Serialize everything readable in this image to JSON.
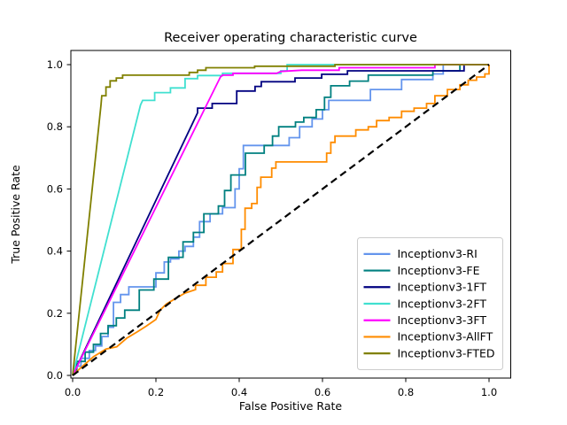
{
  "chart_data": {
    "type": "line",
    "title": "Receiver operating characteristic curve",
    "xlabel": "False Positive Rate",
    "ylabel": "True Positive Rate",
    "xlim": [
      0.0,
      1.0
    ],
    "ylim": [
      0.0,
      1.0
    ],
    "xticks": [
      0.0,
      0.2,
      0.4,
      0.6,
      0.8,
      1.0
    ],
    "yticks": [
      0.0,
      0.2,
      0.4,
      0.6,
      0.8,
      1.0
    ],
    "grid": false,
    "legend_position": "lower right",
    "series": [
      {
        "name": "Inceptionv3-RI",
        "color": "#6495ED",
        "style": "solid",
        "in_legend": true,
        "points": [
          [
            0,
            0
          ],
          [
            0.005,
            0.03
          ],
          [
            0.02,
            0.03
          ],
          [
            0.02,
            0.055
          ],
          [
            0.04,
            0.055
          ],
          [
            0.04,
            0.08
          ],
          [
            0.055,
            0.08
          ],
          [
            0.055,
            0.095
          ],
          [
            0.07,
            0.095
          ],
          [
            0.07,
            0.125
          ],
          [
            0.085,
            0.125
          ],
          [
            0.085,
            0.155
          ],
          [
            0.098,
            0.155
          ],
          [
            0.098,
            0.235
          ],
          [
            0.115,
            0.235
          ],
          [
            0.115,
            0.26
          ],
          [
            0.135,
            0.26
          ],
          [
            0.135,
            0.285
          ],
          [
            0.2,
            0.285
          ],
          [
            0.2,
            0.33
          ],
          [
            0.22,
            0.33
          ],
          [
            0.22,
            0.365
          ],
          [
            0.235,
            0.365
          ],
          [
            0.235,
            0.375
          ],
          [
            0.255,
            0.375
          ],
          [
            0.255,
            0.4
          ],
          [
            0.27,
            0.4
          ],
          [
            0.27,
            0.415
          ],
          [
            0.29,
            0.415
          ],
          [
            0.29,
            0.445
          ],
          [
            0.305,
            0.445
          ],
          [
            0.305,
            0.495
          ],
          [
            0.33,
            0.495
          ],
          [
            0.33,
            0.52
          ],
          [
            0.36,
            0.52
          ],
          [
            0.36,
            0.54
          ],
          [
            0.39,
            0.54
          ],
          [
            0.39,
            0.6
          ],
          [
            0.4,
            0.6
          ],
          [
            0.4,
            0.665
          ],
          [
            0.41,
            0.665
          ],
          [
            0.41,
            0.74
          ],
          [
            0.52,
            0.74
          ],
          [
            0.52,
            0.765
          ],
          [
            0.545,
            0.765
          ],
          [
            0.545,
            0.8
          ],
          [
            0.575,
            0.8
          ],
          [
            0.575,
            0.825
          ],
          [
            0.6,
            0.825
          ],
          [
            0.6,
            0.855
          ],
          [
            0.615,
            0.855
          ],
          [
            0.615,
            0.885
          ],
          [
            0.715,
            0.885
          ],
          [
            0.715,
            0.92
          ],
          [
            0.79,
            0.92
          ],
          [
            0.79,
            0.952
          ],
          [
            0.865,
            0.952
          ],
          [
            0.865,
            0.97
          ],
          [
            0.89,
            0.97
          ],
          [
            0.89,
            1
          ],
          [
            1,
            1
          ]
        ]
      },
      {
        "name": "Inceptionv3-FE",
        "color": "#008080",
        "style": "solid",
        "in_legend": true,
        "points": [
          [
            0,
            0
          ],
          [
            0.01,
            0.02
          ],
          [
            0.01,
            0.045
          ],
          [
            0.03,
            0.045
          ],
          [
            0.03,
            0.075
          ],
          [
            0.05,
            0.075
          ],
          [
            0.05,
            0.1
          ],
          [
            0.067,
            0.1
          ],
          [
            0.067,
            0.135
          ],
          [
            0.085,
            0.135
          ],
          [
            0.085,
            0.16
          ],
          [
            0.105,
            0.16
          ],
          [
            0.105,
            0.185
          ],
          [
            0.125,
            0.185
          ],
          [
            0.125,
            0.21
          ],
          [
            0.16,
            0.21
          ],
          [
            0.16,
            0.275
          ],
          [
            0.195,
            0.275
          ],
          [
            0.195,
            0.31
          ],
          [
            0.23,
            0.31
          ],
          [
            0.23,
            0.38
          ],
          [
            0.265,
            0.38
          ],
          [
            0.265,
            0.43
          ],
          [
            0.29,
            0.43
          ],
          [
            0.29,
            0.46
          ],
          [
            0.315,
            0.46
          ],
          [
            0.315,
            0.52
          ],
          [
            0.35,
            0.52
          ],
          [
            0.35,
            0.545
          ],
          [
            0.365,
            0.545
          ],
          [
            0.365,
            0.595
          ],
          [
            0.38,
            0.595
          ],
          [
            0.38,
            0.645
          ],
          [
            0.415,
            0.645
          ],
          [
            0.415,
            0.715
          ],
          [
            0.46,
            0.715
          ],
          [
            0.46,
            0.74
          ],
          [
            0.48,
            0.74
          ],
          [
            0.48,
            0.77
          ],
          [
            0.495,
            0.77
          ],
          [
            0.495,
            0.8
          ],
          [
            0.535,
            0.8
          ],
          [
            0.535,
            0.815
          ],
          [
            0.555,
            0.815
          ],
          [
            0.555,
            0.83
          ],
          [
            0.585,
            0.83
          ],
          [
            0.585,
            0.855
          ],
          [
            0.605,
            0.855
          ],
          [
            0.605,
            0.895
          ],
          [
            0.62,
            0.895
          ],
          [
            0.62,
            0.932
          ],
          [
            0.665,
            0.932
          ],
          [
            0.665,
            0.947
          ],
          [
            0.71,
            0.947
          ],
          [
            0.71,
            0.966
          ],
          [
            0.865,
            0.966
          ],
          [
            0.865,
            0.98
          ],
          [
            0.93,
            0.98
          ],
          [
            0.93,
            1
          ],
          [
            1,
            1
          ]
        ]
      },
      {
        "name": "Inceptionv3-1FT",
        "color": "#000080",
        "style": "solid",
        "in_legend": true,
        "points": [
          [
            0,
            0
          ],
          [
            0.3,
            0.845
          ],
          [
            0.3,
            0.86
          ],
          [
            0.335,
            0.86
          ],
          [
            0.335,
            0.875
          ],
          [
            0.394,
            0.875
          ],
          [
            0.394,
            0.915
          ],
          [
            0.438,
            0.915
          ],
          [
            0.438,
            0.93
          ],
          [
            0.453,
            0.93
          ],
          [
            0.453,
            0.945
          ],
          [
            0.534,
            0.945
          ],
          [
            0.534,
            0.957
          ],
          [
            0.598,
            0.957
          ],
          [
            0.598,
            0.969
          ],
          [
            0.66,
            0.969
          ],
          [
            0.66,
            0.98
          ],
          [
            0.94,
            0.98
          ],
          [
            0.94,
            1
          ],
          [
            1,
            1
          ]
        ]
      },
      {
        "name": "Inceptionv3-2FT",
        "color": "#40E0D0",
        "style": "solid",
        "in_legend": true,
        "points": [
          [
            0,
            0
          ],
          [
            0.163,
            0.87
          ],
          [
            0.168,
            0.885
          ],
          [
            0.197,
            0.885
          ],
          [
            0.197,
            0.91
          ],
          [
            0.235,
            0.91
          ],
          [
            0.235,
            0.925
          ],
          [
            0.27,
            0.925
          ],
          [
            0.27,
            0.955
          ],
          [
            0.3,
            0.955
          ],
          [
            0.3,
            0.965
          ],
          [
            0.36,
            0.965
          ],
          [
            0.36,
            0.972
          ],
          [
            0.5,
            0.972
          ],
          [
            0.5,
            0.98
          ],
          [
            0.515,
            0.98
          ],
          [
            0.515,
            1
          ],
          [
            1,
            1
          ]
        ]
      },
      {
        "name": "Inceptionv3-3FT",
        "color": "#FF00FF",
        "style": "solid",
        "in_legend": true,
        "points": [
          [
            0,
            0
          ],
          [
            0.355,
            0.96
          ],
          [
            0.36,
            0.966
          ],
          [
            0.385,
            0.966
          ],
          [
            0.385,
            0.972
          ],
          [
            0.49,
            0.972
          ],
          [
            0.5,
            0.978
          ],
          [
            0.55,
            0.982
          ],
          [
            0.64,
            0.982
          ],
          [
            0.64,
            0.99
          ],
          [
            0.87,
            0.99
          ],
          [
            0.87,
            1
          ],
          [
            1,
            1
          ]
        ]
      },
      {
        "name": "Inceptionv3-AllFT",
        "color": "#FF8C00",
        "style": "solid",
        "in_legend": true,
        "points": [
          [
            0,
            0
          ],
          [
            0.02,
            0.025
          ],
          [
            0.05,
            0.06
          ],
          [
            0.08,
            0.085
          ],
          [
            0.106,
            0.092
          ],
          [
            0.13,
            0.12
          ],
          [
            0.155,
            0.14
          ],
          [
            0.177,
            0.159
          ],
          [
            0.2,
            0.18
          ],
          [
            0.21,
            0.21
          ],
          [
            0.225,
            0.23
          ],
          [
            0.25,
            0.25
          ],
          [
            0.27,
            0.265
          ],
          [
            0.295,
            0.276
          ],
          [
            0.295,
            0.29
          ],
          [
            0.32,
            0.29
          ],
          [
            0.32,
            0.316
          ],
          [
            0.345,
            0.316
          ],
          [
            0.345,
            0.333
          ],
          [
            0.36,
            0.333
          ],
          [
            0.36,
            0.36
          ],
          [
            0.385,
            0.36
          ],
          [
            0.385,
            0.405
          ],
          [
            0.405,
            0.405
          ],
          [
            0.405,
            0.47
          ],
          [
            0.414,
            0.47
          ],
          [
            0.414,
            0.538
          ],
          [
            0.43,
            0.538
          ],
          [
            0.43,
            0.553
          ],
          [
            0.443,
            0.553
          ],
          [
            0.443,
            0.605
          ],
          [
            0.452,
            0.605
          ],
          [
            0.452,
            0.638
          ],
          [
            0.478,
            0.638
          ],
          [
            0.478,
            0.667
          ],
          [
            0.488,
            0.667
          ],
          [
            0.488,
            0.687
          ],
          [
            0.61,
            0.687
          ],
          [
            0.61,
            0.715
          ],
          [
            0.62,
            0.715
          ],
          [
            0.62,
            0.75
          ],
          [
            0.63,
            0.75
          ],
          [
            0.63,
            0.77
          ],
          [
            0.68,
            0.77
          ],
          [
            0.68,
            0.79
          ],
          [
            0.71,
            0.79
          ],
          [
            0.71,
            0.8
          ],
          [
            0.73,
            0.8
          ],
          [
            0.73,
            0.82
          ],
          [
            0.76,
            0.82
          ],
          [
            0.76,
            0.83
          ],
          [
            0.79,
            0.83
          ],
          [
            0.79,
            0.85
          ],
          [
            0.82,
            0.85
          ],
          [
            0.82,
            0.86
          ],
          [
            0.85,
            0.86
          ],
          [
            0.85,
            0.875
          ],
          [
            0.87,
            0.875
          ],
          [
            0.87,
            0.9
          ],
          [
            0.9,
            0.9
          ],
          [
            0.9,
            0.92
          ],
          [
            0.93,
            0.92
          ],
          [
            0.93,
            0.935
          ],
          [
            0.95,
            0.935
          ],
          [
            0.95,
            0.95
          ],
          [
            0.97,
            0.95
          ],
          [
            0.97,
            0.96
          ],
          [
            0.99,
            0.96
          ],
          [
            0.99,
            0.97
          ],
          [
            1,
            0.97
          ],
          [
            1,
            1
          ]
        ]
      },
      {
        "name": "Inceptionv3-FTED",
        "color": "#808000",
        "style": "solid",
        "in_legend": true,
        "points": [
          [
            0,
            0
          ],
          [
            0.068,
            0.87
          ],
          [
            0.07,
            0.9
          ],
          [
            0.08,
            0.9
          ],
          [
            0.08,
            0.928
          ],
          [
            0.09,
            0.928
          ],
          [
            0.09,
            0.948
          ],
          [
            0.105,
            0.948
          ],
          [
            0.105,
            0.957
          ],
          [
            0.12,
            0.957
          ],
          [
            0.12,
            0.966
          ],
          [
            0.28,
            0.966
          ],
          [
            0.28,
            0.975
          ],
          [
            0.3,
            0.975
          ],
          [
            0.3,
            0.982
          ],
          [
            0.32,
            0.982
          ],
          [
            0.32,
            0.99
          ],
          [
            0.437,
            0.99
          ],
          [
            0.437,
            0.995
          ],
          [
            0.63,
            0.995
          ],
          [
            0.63,
            1
          ],
          [
            1,
            1
          ]
        ]
      },
      {
        "name": "chance-diagonal",
        "color": "#000000",
        "style": "dashed",
        "in_legend": false,
        "points": [
          [
            0,
            0
          ],
          [
            1,
            1
          ]
        ]
      }
    ]
  }
}
